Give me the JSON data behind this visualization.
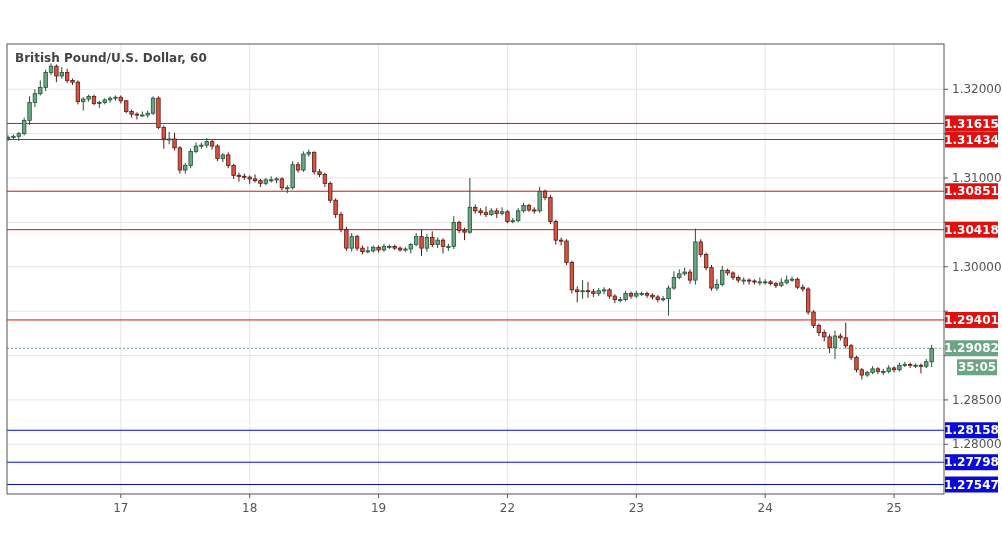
{
  "chart_data": {
    "type": "candlestick",
    "title": "British Pound/U.S. Dollar, 60",
    "categories": [
      null,
      null,
      null,
      null,
      null,
      null,
      null,
      null,
      null,
      null,
      null,
      null,
      null,
      null,
      null,
      null,
      null,
      null,
      null,
      null,
      null,
      "17",
      null,
      null,
      null,
      null,
      null,
      null,
      null,
      null,
      null,
      null,
      null,
      null,
      null,
      null,
      null,
      null,
      null,
      null,
      null,
      null,
      null,
      null,
      null,
      "18",
      null,
      null,
      null,
      null,
      null,
      null,
      null,
      null,
      null,
      null,
      null,
      null,
      null,
      null,
      null,
      null,
      null,
      null,
      null,
      null,
      null,
      null,
      null,
      "19",
      null,
      null,
      null,
      null,
      null,
      null,
      null,
      null,
      null,
      null,
      null,
      null,
      null,
      null,
      null,
      null,
      null,
      null,
      null,
      null,
      null,
      null,
      null,
      "22",
      null,
      null,
      null,
      null,
      null,
      null,
      null,
      null,
      null,
      null,
      null,
      null,
      null,
      null,
      null,
      null,
      null,
      null,
      null,
      null,
      null,
      null,
      null,
      "23",
      null,
      null,
      null,
      null,
      null,
      null,
      null,
      null,
      null,
      null,
      null,
      null,
      null,
      null,
      null,
      null,
      null,
      null,
      null,
      null,
      null,
      null,
      null,
      "24",
      null,
      null,
      null,
      null,
      null,
      null,
      null,
      null,
      null,
      null,
      null,
      null,
      null,
      null,
      null,
      null,
      null,
      null,
      null,
      null,
      null,
      null,
      null,
      "25",
      null,
      null,
      null,
      null,
      null,
      null,
      null
    ],
    "ohlc": [
      [
        1.3144,
        1.3148,
        1.3142,
        1.3146
      ],
      [
        1.3146,
        1.3149,
        1.3143,
        1.3147
      ],
      [
        1.3147,
        1.3152,
        1.3142,
        1.315
      ],
      [
        1.315,
        1.3168,
        1.3148,
        1.3165
      ],
      [
        1.3165,
        1.3192,
        1.316,
        1.3185
      ],
      [
        1.3185,
        1.32,
        1.318,
        1.3195
      ],
      [
        1.3195,
        1.321,
        1.3193,
        1.3202
      ],
      [
        1.3202,
        1.3222,
        1.3198,
        1.3219
      ],
      [
        1.3219,
        1.3229,
        1.3216,
        1.3226
      ],
      [
        1.3226,
        1.3228,
        1.3208,
        1.3215
      ],
      [
        1.3215,
        1.3225,
        1.3212,
        1.3219
      ],
      [
        1.3219,
        1.3223,
        1.3207,
        1.321
      ],
      [
        1.321,
        1.3212,
        1.3205,
        1.3208
      ],
      [
        1.3208,
        1.321,
        1.3183,
        1.3186
      ],
      [
        1.3186,
        1.3191,
        1.3176,
        1.3189
      ],
      [
        1.3189,
        1.3194,
        1.3186,
        1.3192
      ],
      [
        1.3192,
        1.3194,
        1.3182,
        1.3184
      ],
      [
        1.3184,
        1.3187,
        1.3179,
        1.3185
      ],
      [
        1.3185,
        1.319,
        1.3183,
        1.3188
      ],
      [
        1.3188,
        1.3192,
        1.3185,
        1.319
      ],
      [
        1.319,
        1.3193,
        1.3187,
        1.3191
      ],
      [
        1.3191,
        1.3193,
        1.3184,
        1.3187
      ],
      [
        1.3187,
        1.3188,
        1.3173,
        1.3175
      ],
      [
        1.3175,
        1.3177,
        1.3168,
        1.3172
      ],
      [
        1.3172,
        1.3174,
        1.3166,
        1.3171
      ],
      [
        1.3171,
        1.3175,
        1.3169,
        1.3171
      ],
      [
        1.3171,
        1.3176,
        1.3168,
        1.3173
      ],
      [
        1.3173,
        1.3192,
        1.3171,
        1.319
      ],
      [
        1.319,
        1.3192,
        1.3155,
        1.3157
      ],
      [
        1.3157,
        1.3159,
        1.3133,
        1.3144
      ],
      [
        1.3144,
        1.3152,
        1.3138,
        1.3144
      ],
      [
        1.3144,
        1.3151,
        1.3131,
        1.3134
      ],
      [
        1.3134,
        1.3136,
        1.3105,
        1.3109
      ],
      [
        1.3109,
        1.3117,
        1.3105,
        1.3114
      ],
      [
        1.3114,
        1.3133,
        1.3111,
        1.313
      ],
      [
        1.313,
        1.314,
        1.3128,
        1.3136
      ],
      [
        1.3136,
        1.314,
        1.3133,
        1.3137
      ],
      [
        1.3137,
        1.3145,
        1.3134,
        1.3141
      ],
      [
        1.3141,
        1.3143,
        1.3132,
        1.3136
      ],
      [
        1.3136,
        1.3138,
        1.3119,
        1.3122
      ],
      [
        1.3122,
        1.3128,
        1.3118,
        1.3126
      ],
      [
        1.3126,
        1.3129,
        1.3111,
        1.3114
      ],
      [
        1.3114,
        1.3116,
        1.3099,
        1.3103
      ],
      [
        1.3103,
        1.3106,
        1.3096,
        1.3102
      ],
      [
        1.3102,
        1.3105,
        1.3098,
        1.3101
      ],
      [
        1.3101,
        1.3103,
        1.3093,
        1.3099
      ],
      [
        1.3099,
        1.3104,
        1.3095,
        1.3097
      ],
      [
        1.3097,
        1.3099,
        1.309,
        1.3094
      ],
      [
        1.3094,
        1.31,
        1.3092,
        1.3098
      ],
      [
        1.3098,
        1.3102,
        1.3095,
        1.3098
      ],
      [
        1.3098,
        1.3101,
        1.3094,
        1.3099
      ],
      [
        1.3099,
        1.3101,
        1.3086,
        1.3089
      ],
      [
        1.3089,
        1.3092,
        1.3083,
        1.3089
      ],
      [
        1.3089,
        1.3119,
        1.3087,
        1.3115
      ],
      [
        1.3115,
        1.3118,
        1.3106,
        1.3109
      ],
      [
        1.3109,
        1.313,
        1.3107,
        1.3127
      ],
      [
        1.3127,
        1.3132,
        1.3124,
        1.3129
      ],
      [
        1.3129,
        1.313,
        1.3104,
        1.3107
      ],
      [
        1.3107,
        1.311,
        1.3101,
        1.3104
      ],
      [
        1.3104,
        1.3106,
        1.309,
        1.3094
      ],
      [
        1.3094,
        1.3096,
        1.3072,
        1.3075
      ],
      [
        1.3075,
        1.3077,
        1.3055,
        1.3059
      ],
      [
        1.3059,
        1.3062,
        1.3039,
        1.3042
      ],
      [
        1.3042,
        1.3045,
        1.3018,
        1.3021
      ],
      [
        1.3021,
        1.3038,
        1.3017,
        1.3034
      ],
      [
        1.3034,
        1.3036,
        1.3018,
        1.3021
      ],
      [
        1.3021,
        1.3024,
        1.3014,
        1.3017
      ],
      [
        1.3017,
        1.3023,
        1.3015,
        1.3018
      ],
      [
        1.3018,
        1.3024,
        1.3016,
        1.3022
      ],
      [
        1.3022,
        1.3024,
        1.3016,
        1.3019
      ],
      [
        1.3019,
        1.3026,
        1.3017,
        1.3023
      ],
      [
        1.3023,
        1.3025,
        1.302,
        1.3023
      ],
      [
        1.3023,
        1.3025,
        1.3019,
        1.3021
      ],
      [
        1.3021,
        1.3023,
        1.3017,
        1.3019
      ],
      [
        1.3019,
        1.3022,
        1.3017,
        1.302
      ],
      [
        1.302,
        1.3027,
        1.3015,
        1.3025
      ],
      [
        1.3025,
        1.3038,
        1.3023,
        1.3034
      ],
      [
        1.3034,
        1.3042,
        1.3012,
        1.3021
      ],
      [
        1.3021,
        1.3037,
        1.3017,
        1.3033
      ],
      [
        1.3033,
        1.304,
        1.3022,
        1.3025
      ],
      [
        1.3025,
        1.3033,
        1.3021,
        1.303
      ],
      [
        1.303,
        1.3032,
        1.3015,
        1.3023
      ],
      [
        1.3023,
        1.3026,
        1.3018,
        1.3023
      ],
      [
        1.3023,
        1.3057,
        1.302,
        1.305
      ],
      [
        1.305,
        1.3052,
        1.3038,
        1.3041
      ],
      [
        1.3041,
        1.3044,
        1.303,
        1.3039
      ],
      [
        1.3039,
        1.31,
        1.3037,
        1.3067
      ],
      [
        1.3067,
        1.307,
        1.306,
        1.3063
      ],
      [
        1.3063,
        1.3066,
        1.3058,
        1.3061
      ],
      [
        1.3061,
        1.3068,
        1.3056,
        1.3059
      ],
      [
        1.3059,
        1.3066,
        1.3057,
        1.3063
      ],
      [
        1.3063,
        1.3066,
        1.3055,
        1.306
      ],
      [
        1.306,
        1.3067,
        1.3058,
        1.3062
      ],
      [
        1.3062,
        1.3064,
        1.3049,
        1.3051
      ],
      [
        1.3051,
        1.3055,
        1.3049,
        1.3052
      ],
      [
        1.3052,
        1.3066,
        1.305,
        1.3063
      ],
      [
        1.3063,
        1.3072,
        1.3061,
        1.3069
      ],
      [
        1.3069,
        1.3071,
        1.3062,
        1.3064
      ],
      [
        1.3064,
        1.3067,
        1.306,
        1.3063
      ],
      [
        1.3063,
        1.309,
        1.3061,
        1.3085
      ],
      [
        1.3085,
        1.3087,
        1.3075,
        1.3078
      ],
      [
        1.3078,
        1.3081,
        1.3048,
        1.3051
      ],
      [
        1.3051,
        1.3053,
        1.3025,
        1.303
      ],
      [
        1.303,
        1.3033,
        1.3024,
        1.3029
      ],
      [
        1.3029,
        1.3031,
        1.3002,
        1.3005
      ],
      [
        1.3005,
        1.3007,
        1.297,
        1.2974
      ],
      [
        1.2974,
        1.2978,
        1.296,
        1.2972
      ],
      [
        1.2972,
        1.2985,
        1.2964,
        1.2973
      ],
      [
        1.2973,
        1.2983,
        1.2965,
        1.2972
      ],
      [
        1.2972,
        1.2975,
        1.2966,
        1.297
      ],
      [
        1.297,
        1.2976,
        1.2967,
        1.2973
      ],
      [
        1.2973,
        1.2977,
        1.2969,
        1.2974
      ],
      [
        1.2974,
        1.2976,
        1.2964,
        1.2967
      ],
      [
        1.2967,
        1.2969,
        1.2959,
        1.2963
      ],
      [
        1.2963,
        1.2966,
        1.296,
        1.2963
      ],
      [
        1.2963,
        1.2973,
        1.2961,
        1.297
      ],
      [
        1.297,
        1.2972,
        1.2964,
        1.2967
      ],
      [
        1.2967,
        1.2973,
        1.2965,
        1.297
      ],
      [
        1.297,
        1.2972,
        1.2967,
        1.297
      ],
      [
        1.297,
        1.2972,
        1.2965,
        1.2968
      ],
      [
        1.2968,
        1.297,
        1.2963,
        1.2966
      ],
      [
        1.2966,
        1.2968,
        1.296,
        1.2963
      ],
      [
        1.2963,
        1.2967,
        1.2961,
        1.2964
      ],
      [
        1.2964,
        1.2979,
        1.2945,
        1.2976
      ],
      [
        1.2976,
        1.2995,
        1.2974,
        1.2988
      ],
      [
        1.2988,
        1.2997,
        1.2986,
        1.2992
      ],
      [
        1.2992,
        1.2999,
        1.299,
        1.2994
      ],
      [
        1.2994,
        1.2997,
        1.2981,
        1.2985
      ],
      [
        1.2985,
        1.3043,
        1.298,
        1.3028
      ],
      [
        1.3028,
        1.3031,
        1.3011,
        1.3014
      ],
      [
        1.3014,
        1.3016,
        1.2996,
        1.2999
      ],
      [
        1.2999,
        1.3002,
        1.2973,
        1.2976
      ],
      [
        1.2976,
        1.2986,
        1.2973,
        1.298
      ],
      [
        1.298,
        1.3001,
        1.2978,
        1.2996
      ],
      [
        1.2996,
        1.2998,
        1.299,
        1.2993
      ],
      [
        1.2993,
        1.2995,
        1.2985,
        1.2988
      ],
      [
        1.2988,
        1.299,
        1.2982,
        1.2985
      ],
      [
        1.2985,
        1.2988,
        1.298,
        1.2985
      ],
      [
        1.2985,
        1.2987,
        1.298,
        1.2984
      ],
      [
        1.2984,
        1.2986,
        1.298,
        1.2983
      ],
      [
        1.2983,
        1.2988,
        1.2979,
        1.2983
      ],
      [
        1.2983,
        1.2986,
        1.298,
        1.2983
      ],
      [
        1.2983,
        1.2985,
        1.2979,
        1.2981
      ],
      [
        1.2981,
        1.2983,
        1.2976,
        1.2979
      ],
      [
        1.2979,
        1.2987,
        1.2977,
        1.2982
      ],
      [
        1.2982,
        1.299,
        1.298,
        1.2985
      ],
      [
        1.2985,
        1.2989,
        1.2983,
        1.2986
      ],
      [
        1.2986,
        1.2988,
        1.2975,
        1.2977
      ],
      [
        1.2977,
        1.298,
        1.2972,
        1.2975
      ],
      [
        1.2975,
        1.2977,
        1.2946,
        1.2949
      ],
      [
        1.2949,
        1.2951,
        1.2931,
        1.2934
      ],
      [
        1.2934,
        1.2936,
        1.2922,
        1.2926
      ],
      [
        1.2926,
        1.2929,
        1.2916,
        1.2921
      ],
      [
        1.2921,
        1.2924,
        1.2903,
        1.2909
      ],
      [
        1.2909,
        1.2928,
        1.2896,
        1.2922
      ],
      [
        1.2922,
        1.2925,
        1.2917,
        1.292
      ],
      [
        1.292,
        1.2937,
        1.2908,
        1.2911
      ],
      [
        1.2911,
        1.2913,
        1.2895,
        1.2898
      ],
      [
        1.2898,
        1.29,
        1.2881,
        1.2884
      ],
      [
        1.2884,
        1.2886,
        1.2873,
        1.2878
      ],
      [
        1.2878,
        1.2883,
        1.2876,
        1.2881
      ],
      [
        1.2881,
        1.2888,
        1.2879,
        1.2885
      ],
      [
        1.2885,
        1.2887,
        1.2879,
        1.2882
      ],
      [
        1.2882,
        1.2885,
        1.2878,
        1.2882
      ],
      [
        1.2882,
        1.2889,
        1.288,
        1.2886
      ],
      [
        1.2886,
        1.2888,
        1.2881,
        1.2884
      ],
      [
        1.2884,
        1.2892,
        1.2882,
        1.2889
      ],
      [
        1.2889,
        1.2893,
        1.2887,
        1.289
      ],
      [
        1.289,
        1.2892,
        1.2886,
        1.2889
      ],
      [
        1.2889,
        1.2891,
        1.2886,
        1.2889
      ],
      [
        1.2889,
        1.2891,
        1.288,
        1.2888
      ],
      [
        1.2888,
        1.2896,
        1.2886,
        1.2893
      ],
      [
        1.2893,
        1.2912,
        1.2887,
        1.2908
      ]
    ],
    "ylim": [
      1.2744,
      1.3251
    ],
    "yticks": [
      {
        "value": 1.28,
        "label": "1.28000"
      },
      {
        "value": 1.285,
        "label": "1.28500"
      },
      {
        "value": 1.29,
        "label": null
      },
      {
        "value": 1.295,
        "label": null
      },
      {
        "value": 1.3,
        "label": "1.30000"
      },
      {
        "value": 1.305,
        "label": null
      },
      {
        "value": 1.31,
        "label": "1.31000"
      },
      {
        "value": 1.315,
        "label": null
      },
      {
        "value": 1.32,
        "label": "1.32000"
      }
    ],
    "grid": true,
    "ref_lines": [
      {
        "axis": "y",
        "value": 1.31615,
        "label": "1.31615",
        "color": "#e01010"
      },
      {
        "axis": "y",
        "value": 1.31434,
        "label": "1.31434",
        "color": "#e01010"
      },
      {
        "axis": "y",
        "value": 1.30851,
        "label": "1.30851",
        "color": "#e01010"
      },
      {
        "axis": "y",
        "value": 1.30418,
        "label": "1.30418",
        "color": "#e01010"
      },
      {
        "axis": "y",
        "value": 1.29401,
        "label": "1.29401",
        "color": "#e01010"
      },
      {
        "axis": "y",
        "value": 1.29082,
        "label": "1.29082",
        "color": "#6ba583",
        "line_style": "dotted"
      },
      {
        "axis": "y",
        "value": 1.28158,
        "label": "1.28158",
        "color": "#0a0ad8"
      },
      {
        "axis": "y",
        "value": 1.27798,
        "label": "1.27798",
        "color": "#0a0ad8"
      },
      {
        "axis": "y",
        "value": 1.27547,
        "label": "1.27547",
        "color": "#0a0ad8"
      }
    ],
    "annotations": [
      "35:05"
    ]
  }
}
